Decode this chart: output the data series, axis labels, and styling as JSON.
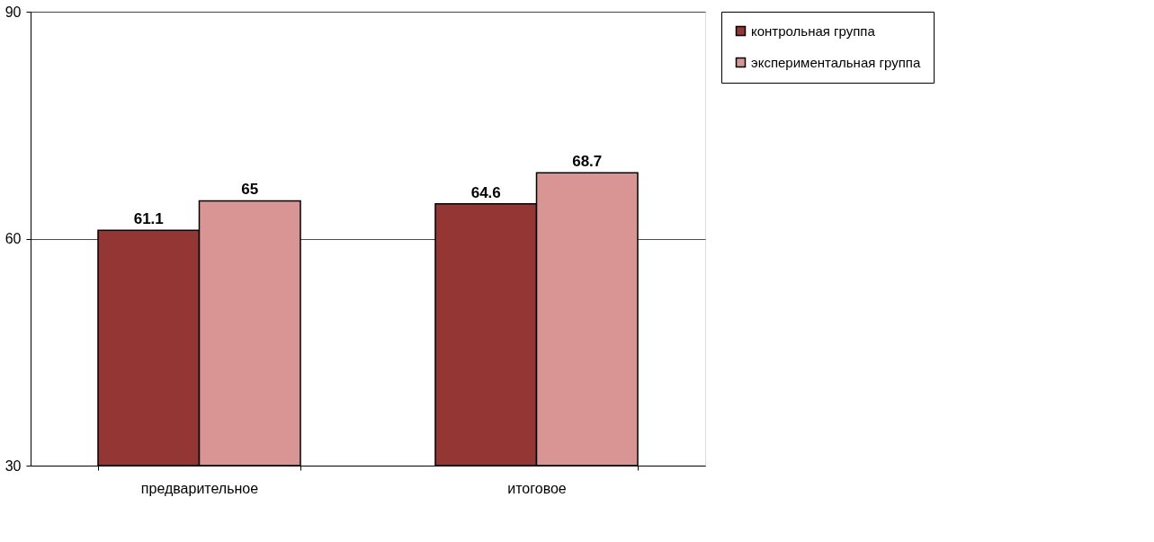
{
  "chart_data": {
    "type": "bar",
    "categories": [
      "предварительное",
      "итоговое"
    ],
    "series": [
      {
        "name": "контрольная группа",
        "color": "#943634",
        "values": [
          61.1,
          64.6
        ]
      },
      {
        "name": "экспериментальная группа",
        "color": "#d99594",
        "values": [
          65,
          68.7
        ]
      }
    ],
    "ylim": [
      30,
      90
    ],
    "yticks": [
      30,
      60,
      90
    ],
    "grid": "y",
    "legend": "right",
    "data_labels": true
  }
}
